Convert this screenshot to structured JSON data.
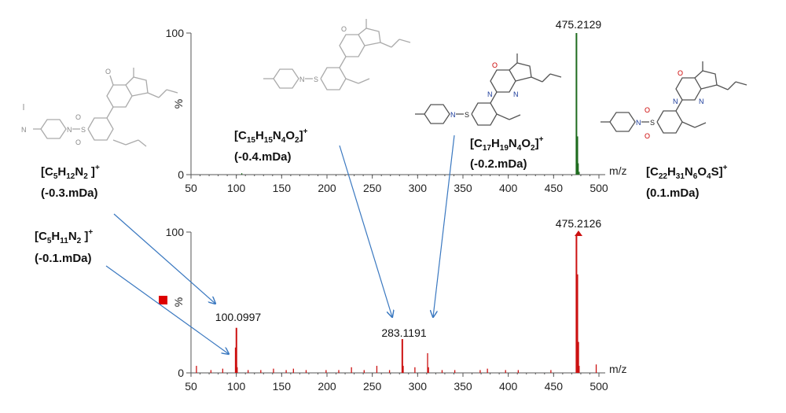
{
  "colors": {
    "top_series": "#1e6b1e",
    "bottom_series": "#cc1111",
    "axis": "#555555",
    "arrow": "#3a78c0",
    "marker": "#dd0000"
  },
  "chart_data": [
    {
      "type": "bar",
      "panel": "top",
      "xlabel": "m/z",
      "ylabel": "%",
      "xlim": [
        50,
        500
      ],
      "ylim": [
        0,
        100
      ],
      "x_ticks": [
        "50",
        "100",
        "150",
        "200",
        "250",
        "300",
        "350",
        "400",
        "450",
        "500"
      ],
      "y_ticks": [
        "0",
        "100"
      ],
      "peaks": [
        {
          "mz": 106,
          "intensity": 1
        },
        {
          "mz": 475.2,
          "intensity": 100
        },
        {
          "mz": 476.2,
          "intensity": 27
        },
        {
          "mz": 477.2,
          "intensity": 8
        },
        {
          "mz": 478.2,
          "intensity": 2
        }
      ],
      "labeled_peak": "475.2129"
    },
    {
      "type": "bar",
      "panel": "bottom",
      "xlabel": "m/z",
      "ylabel": "%",
      "xlim": [
        50,
        500
      ],
      "ylim": [
        0,
        100
      ],
      "x_ticks": [
        "50",
        "100",
        "150",
        "200",
        "250",
        "300",
        "350",
        "400",
        "450",
        "500"
      ],
      "y_ticks": [
        "0",
        "100"
      ],
      "peaks": [
        {
          "mz": 56,
          "intensity": 5
        },
        {
          "mz": 72,
          "intensity": 2
        },
        {
          "mz": 85,
          "intensity": 3
        },
        {
          "mz": 99,
          "intensity": 18
        },
        {
          "mz": 100.1,
          "intensity": 32
        },
        {
          "mz": 101,
          "intensity": 4
        },
        {
          "mz": 113,
          "intensity": 2
        },
        {
          "mz": 127,
          "intensity": 2
        },
        {
          "mz": 141,
          "intensity": 3
        },
        {
          "mz": 155,
          "intensity": 2
        },
        {
          "mz": 163,
          "intensity": 3
        },
        {
          "mz": 177,
          "intensity": 2
        },
        {
          "mz": 199,
          "intensity": 2
        },
        {
          "mz": 213,
          "intensity": 2
        },
        {
          "mz": 227,
          "intensity": 4
        },
        {
          "mz": 241,
          "intensity": 2
        },
        {
          "mz": 255,
          "intensity": 5
        },
        {
          "mz": 269,
          "intensity": 2
        },
        {
          "mz": 283.1,
          "intensity": 24
        },
        {
          "mz": 284.1,
          "intensity": 5
        },
        {
          "mz": 297,
          "intensity": 4
        },
        {
          "mz": 311,
          "intensity": 14
        },
        {
          "mz": 312,
          "intensity": 4
        },
        {
          "mz": 327,
          "intensity": 2
        },
        {
          "mz": 341,
          "intensity": 2
        },
        {
          "mz": 369,
          "intensity": 2
        },
        {
          "mz": 377,
          "intensity": 3
        },
        {
          "mz": 397,
          "intensity": 2
        },
        {
          "mz": 411,
          "intensity": 2
        },
        {
          "mz": 447,
          "intensity": 2
        },
        {
          "mz": 475.2,
          "intensity": 98
        },
        {
          "mz": 476.2,
          "intensity": 70
        },
        {
          "mz": 477.2,
          "intensity": 22
        },
        {
          "mz": 478.2,
          "intensity": 5
        },
        {
          "mz": 497,
          "intensity": 6
        }
      ],
      "labeled_peaks": [
        "475.2126",
        "283.1191",
        "100.0997"
      ]
    }
  ],
  "annotations": {
    "f1": {
      "pre": "[C",
      "s1": "5",
      "m1": "H",
      "s2": "12",
      "m2": "N",
      "s3": "2",
      "post": " ]",
      "sup": "+",
      "err": "(-0.3.mDa)"
    },
    "f2": {
      "pre": "[C",
      "s1": "5",
      "m1": "H",
      "s2": "11",
      "m2": "N",
      "s3": "2",
      "post": " ]",
      "sup": "+",
      "err": "(-0.1.mDa)"
    },
    "f3": {
      "pre": "[C",
      "s1": "15",
      "m1": "H",
      "s2": "15",
      "m2": "N",
      "s3": "4",
      "m3": "O",
      "s4": "2",
      "post": "]",
      "sup": "+",
      "err": "(-0.4.mDa)"
    },
    "f4": {
      "pre": "[C",
      "s1": "17",
      "m1": "H",
      "s2": "19",
      "m2": "N",
      "s3": "4",
      "m3": "O",
      "s4": "2",
      "post": "]",
      "sup": "+",
      "err": "(-0.2.mDa)"
    },
    "f5": {
      "pre": "[C",
      "s1": "22",
      "m1": "H",
      "s2": "31",
      "m2": "N",
      "s3": "6",
      "m3": "O",
      "s4": "4",
      "m4": "S",
      "post": "]",
      "sup": "+",
      "err": "(0.1.mDa)"
    }
  },
  "structure_atoms": {
    "o": "O",
    "n": "N",
    "s": "S"
  }
}
